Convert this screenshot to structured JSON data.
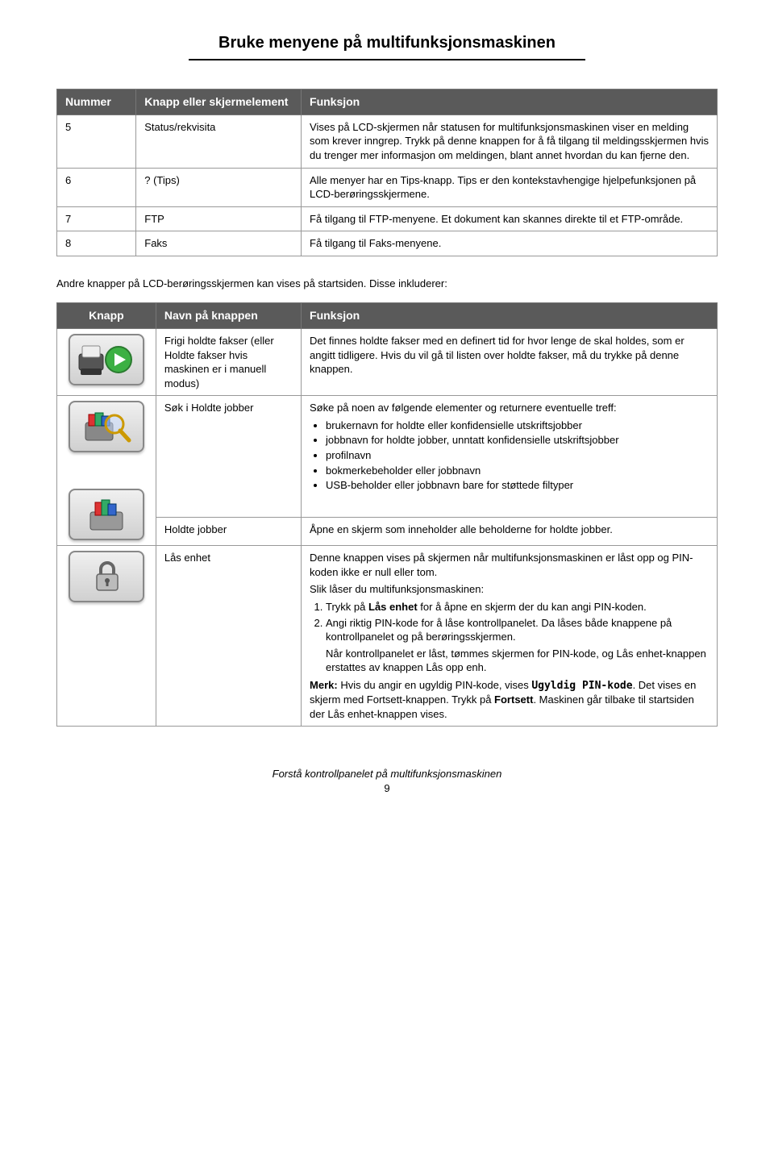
{
  "page_title": "Bruke menyene på multifunksjonsmaskinen",
  "table1": {
    "headers": [
      "Nummer",
      "Knapp eller skjermelement",
      "Funksjon"
    ],
    "rows": [
      {
        "num": "5",
        "name": "Status/rekvisita",
        "func": "Vises på LCD-skjermen når statusen for multifunksjons­maskinen viser en melding som krever inngrep. Trykk på denne knappen for å få tilgang til meldingsskjermen hvis du trenger mer informasjon om meldingen, blant annet hvordan du kan fjerne den."
      },
      {
        "num": "6",
        "name": "? (Tips)",
        "func": "Alle menyer har en Tips-knapp. Tips er den kontekstavhengige hjelpefunksjonen på LCD-berøringsskjermene."
      },
      {
        "num": "7",
        "name": "FTP",
        "func": "Få tilgang til FTP-menyene. Et dokument kan skannes direkte til et FTP-område."
      },
      {
        "num": "8",
        "name": "Faks",
        "func": "Få tilgang til Faks-menyene."
      }
    ]
  },
  "intro_text": "Andre knapper på LCD-berøringsskjermen kan vises på startsiden. Disse inkluderer:",
  "table2": {
    "headers": [
      "Knapp",
      "Navn på knappen",
      "Funksjon"
    ],
    "row_release": {
      "name": "Frigi holdte fakser (eller Holdte fakser hvis maskinen er i manuell modus)",
      "func": "Det finnes holdte fakser med en definert tid for hvor lenge de skal holdes, som er angitt tidligere. Hvis du vil gå til listen over holdte fakser, må du trykke på denne knappen."
    },
    "row_search": {
      "name": "Søk i Holdte jobber",
      "func_intro": "Søke på noen av følgende elementer og returnere eventuelle treff:",
      "bullets": [
        "brukernavn for holdte eller konfidensielle utskriftsjobber",
        "jobbnavn for holdte jobber, unntatt konfidensielle utskriftsjobber",
        "profilnavn",
        "bokmerkebeholder eller jobbnavn",
        "USB-beholder eller jobbnavn bare for støttede filtyper"
      ]
    },
    "row_held": {
      "name": "Holdte jobber",
      "func": "Åpne en skjerm som inneholder alle beholderne for holdte jobber."
    },
    "row_lock": {
      "name": "Lås enhet",
      "intro1": "Denne knappen vises på skjermen når multifunksjonsmaskinen er låst opp og PIN-koden ikke er null eller tom.",
      "intro2": "Slik låser du multifunksjonsmaskinen:",
      "step1_pre": "Trykk på ",
      "step1_bold": "Lås enhet",
      "step1_post": " for å åpne en skjerm der du kan angi PIN-koden.",
      "step2": "Angi riktig PIN-kode for å låse kontrollpanelet. Da låses både knappene på kontrollpanelet og på berøringsskjermen.",
      "step2_after": "Når kontrollpanelet er låst, tømmes skjermen for PIN-kode, og Lås enhet-knappen erstattes av knappen Lås opp enh.",
      "note_bold": "Merk:",
      "note_pre": " Hvis du angir en ugyldig PIN-kode, vises ",
      "note_code": "Ugyldig PIN-kode",
      "note_post1": ". Det vises en skjerm med Fortsett-knappen. Trykk på ",
      "note_bold2": "Fortsett",
      "note_post2": ". Maskinen går tilbake til startsiden der Lås enhet-knappen vises."
    }
  },
  "footer_text": "Forstå kontrollpanelet på multifunksjonsmaskinen",
  "page_number": "9"
}
